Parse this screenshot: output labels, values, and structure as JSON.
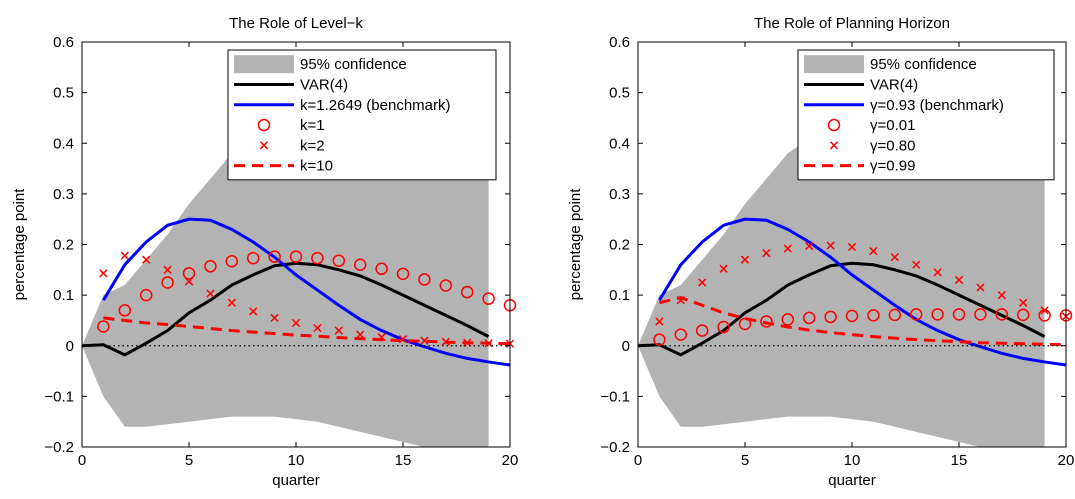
{
  "chart_data": [
    {
      "type": "line",
      "title": "The Role of Level−k",
      "xlabel": "quarter",
      "ylabel": "percentage point",
      "xlim": [
        0,
        20
      ],
      "ylim": [
        -0.2,
        0.6
      ],
      "xticks": [
        0,
        5,
        10,
        15,
        20
      ],
      "yticks": [
        -0.2,
        -0.1,
        0,
        0.1,
        0.2,
        0.3,
        0.4,
        0.5,
        0.6
      ],
      "ytick_labels": [
        "−0.2",
        "−0.1",
        "0",
        "0.1",
        "0.2",
        "0.3",
        "0.4",
        "0.5",
        "0.6"
      ],
      "xtick_labels": [
        "0",
        "5",
        "10",
        "15",
        "20"
      ],
      "legend_position": "top-right",
      "band": {
        "name": "95% confidence",
        "color": "#b3b3b3",
        "x": [
          0,
          1,
          2,
          3,
          4,
          5,
          6,
          7,
          8,
          9,
          10,
          11,
          12,
          13,
          14,
          15,
          16,
          17,
          18,
          19
        ],
        "lower": [
          0,
          -0.1,
          -0.16,
          -0.16,
          -0.155,
          -0.15,
          -0.145,
          -0.14,
          -0.14,
          -0.14,
          -0.145,
          -0.15,
          -0.16,
          -0.17,
          -0.18,
          -0.19,
          -0.2,
          -0.2,
          -0.2,
          -0.2
        ],
        "upper": [
          0,
          0.1,
          0.12,
          0.17,
          0.22,
          0.28,
          0.33,
          0.38,
          0.41,
          0.43,
          0.45,
          0.45,
          0.45,
          0.44,
          0.42,
          0.4,
          0.38,
          0.36,
          0.35,
          0.34
        ]
      },
      "series": [
        {
          "name": "VAR(4)",
          "style": "line",
          "color": "#000000",
          "x": [
            0,
            1,
            2,
            3,
            4,
            5,
            6,
            7,
            8,
            9,
            10,
            11,
            12,
            13,
            14,
            15,
            16,
            17,
            18,
            19
          ],
          "values": [
            0,
            0.002,
            -0.018,
            0.005,
            0.03,
            0.065,
            0.09,
            0.12,
            0.14,
            0.158,
            0.163,
            0.16,
            0.15,
            0.138,
            0.12,
            0.1,
            0.08,
            0.06,
            0.04,
            0.018
          ]
        },
        {
          "name": "k=1.2649 (benchmark)",
          "style": "line",
          "color": "#0000ff",
          "x": [
            1,
            2,
            3,
            4,
            5,
            6,
            7,
            8,
            9,
            10,
            11,
            12,
            13,
            14,
            15,
            16,
            17,
            18,
            19,
            20
          ],
          "values": [
            0.09,
            0.16,
            0.205,
            0.238,
            0.25,
            0.248,
            0.23,
            0.205,
            0.175,
            0.14,
            0.11,
            0.08,
            0.052,
            0.03,
            0.012,
            -0.002,
            -0.015,
            -0.025,
            -0.032,
            -0.038
          ]
        },
        {
          "name": "k=1",
          "style": "circle",
          "color": "#ff0000",
          "x": [
            1,
            2,
            3,
            4,
            5,
            6,
            7,
            8,
            9,
            10,
            11,
            12,
            13,
            14,
            15,
            16,
            17,
            18,
            19,
            20
          ],
          "values": [
            0.038,
            0.07,
            0.1,
            0.125,
            0.143,
            0.157,
            0.167,
            0.173,
            0.176,
            0.176,
            0.173,
            0.168,
            0.16,
            0.152,
            0.142,
            0.131,
            0.119,
            0.106,
            0.093,
            0.08
          ]
        },
        {
          "name": "k=2",
          "style": "cross",
          "color": "#ff0000",
          "x": [
            1,
            2,
            3,
            4,
            5,
            6,
            7,
            8,
            9,
            10,
            11,
            12,
            13,
            14,
            15,
            16,
            17,
            18,
            19,
            20
          ],
          "values": [
            0.143,
            0.178,
            0.17,
            0.15,
            0.127,
            0.103,
            0.085,
            0.068,
            0.055,
            0.045,
            0.035,
            0.03,
            0.022,
            0.017,
            0.013,
            0.01,
            0.008,
            0.006,
            0.005,
            0.004
          ]
        },
        {
          "name": "k=10",
          "style": "dashed",
          "color": "#ff0000",
          "x": [
            1,
            2,
            3,
            4,
            5,
            6,
            7,
            8,
            9,
            10,
            11,
            12,
            13,
            14,
            15,
            16,
            17,
            18,
            19,
            20
          ],
          "values": [
            0.055,
            0.05,
            0.045,
            0.042,
            0.038,
            0.034,
            0.03,
            0.027,
            0.024,
            0.021,
            0.019,
            0.016,
            0.014,
            0.012,
            0.01,
            0.009,
            0.007,
            0.006,
            0.005,
            0.004
          ]
        },
        {
          "name": "",
          "style": "dotted",
          "color": "#000000",
          "x": [
            0,
            20
          ],
          "values": [
            0,
            0
          ]
        }
      ]
    },
    {
      "type": "line",
      "title": "The Role of Planning Horizon",
      "xlabel": "quarter",
      "ylabel": "percentage point",
      "xlim": [
        0,
        20
      ],
      "ylim": [
        -0.2,
        0.6
      ],
      "xticks": [
        0,
        5,
        10,
        15,
        20
      ],
      "yticks": [
        -0.2,
        -0.1,
        0,
        0.1,
        0.2,
        0.3,
        0.4,
        0.5,
        0.6
      ],
      "ytick_labels": [
        "−0.2",
        "−0.1",
        "0",
        "0.1",
        "0.2",
        "0.3",
        "0.4",
        "0.5",
        "0.6"
      ],
      "xtick_labels": [
        "0",
        "5",
        "10",
        "15",
        "20"
      ],
      "legend_position": "top-right",
      "band": {
        "name": "95% confidence",
        "color": "#b3b3b3",
        "x": [
          0,
          1,
          2,
          3,
          4,
          5,
          6,
          7,
          8,
          9,
          10,
          11,
          12,
          13,
          14,
          15,
          16,
          17,
          18,
          19
        ],
        "lower": [
          0,
          -0.1,
          -0.16,
          -0.16,
          -0.155,
          -0.15,
          -0.145,
          -0.14,
          -0.14,
          -0.14,
          -0.145,
          -0.15,
          -0.16,
          -0.17,
          -0.18,
          -0.19,
          -0.2,
          -0.2,
          -0.2,
          -0.2
        ],
        "upper": [
          0,
          0.1,
          0.12,
          0.17,
          0.22,
          0.28,
          0.33,
          0.38,
          0.41,
          0.43,
          0.45,
          0.45,
          0.45,
          0.44,
          0.42,
          0.4,
          0.38,
          0.36,
          0.35,
          0.34
        ]
      },
      "series": [
        {
          "name": "VAR(4)",
          "style": "line",
          "color": "#000000",
          "x": [
            0,
            1,
            2,
            3,
            4,
            5,
            6,
            7,
            8,
            9,
            10,
            11,
            12,
            13,
            14,
            15,
            16,
            17,
            18,
            19
          ],
          "values": [
            0,
            0.002,
            -0.018,
            0.005,
            0.03,
            0.065,
            0.09,
            0.12,
            0.14,
            0.158,
            0.163,
            0.16,
            0.15,
            0.138,
            0.12,
            0.1,
            0.08,
            0.06,
            0.04,
            0.018
          ]
        },
        {
          "name": "γ=0.93 (benchmark)",
          "style": "line",
          "color": "#0000ff",
          "x": [
            1,
            2,
            3,
            4,
            5,
            6,
            7,
            8,
            9,
            10,
            11,
            12,
            13,
            14,
            15,
            16,
            17,
            18,
            19,
            20
          ],
          "values": [
            0.09,
            0.16,
            0.205,
            0.238,
            0.25,
            0.248,
            0.23,
            0.205,
            0.175,
            0.14,
            0.11,
            0.08,
            0.052,
            0.03,
            0.012,
            -0.002,
            -0.015,
            -0.025,
            -0.032,
            -0.038
          ]
        },
        {
          "name": "γ=0.01",
          "style": "circle",
          "color": "#ff0000",
          "x": [
            1,
            2,
            3,
            4,
            5,
            6,
            7,
            8,
            9,
            10,
            11,
            12,
            13,
            14,
            15,
            16,
            17,
            18,
            19,
            20
          ],
          "values": [
            0.012,
            0.022,
            0.03,
            0.037,
            0.043,
            0.048,
            0.052,
            0.055,
            0.057,
            0.059,
            0.06,
            0.061,
            0.062,
            0.062,
            0.062,
            0.062,
            0.062,
            0.061,
            0.06,
            0.06
          ]
        },
        {
          "name": "γ=0.80",
          "style": "cross",
          "color": "#ff0000",
          "x": [
            1,
            2,
            3,
            4,
            5,
            6,
            7,
            8,
            9,
            10,
            11,
            12,
            13,
            14,
            15,
            16,
            17,
            18,
            19,
            20
          ],
          "values": [
            0.048,
            0.09,
            0.125,
            0.152,
            0.17,
            0.183,
            0.192,
            0.197,
            0.198,
            0.195,
            0.187,
            0.175,
            0.16,
            0.145,
            0.13,
            0.115,
            0.1,
            0.085,
            0.07,
            0.058
          ]
        },
        {
          "name": "γ=0.99",
          "style": "dashed",
          "color": "#ff0000",
          "x": [
            1,
            2,
            3,
            4,
            5,
            6,
            7,
            8,
            9,
            10,
            11,
            12,
            13,
            14,
            15,
            16,
            17,
            18,
            19,
            20
          ],
          "values": [
            0.085,
            0.095,
            0.08,
            0.065,
            0.054,
            0.045,
            0.037,
            0.031,
            0.026,
            0.022,
            0.018,
            0.015,
            0.012,
            0.01,
            0.008,
            0.006,
            0.005,
            0.004,
            0.003,
            0.002
          ]
        },
        {
          "name": "",
          "style": "dotted",
          "color": "#000000",
          "x": [
            0,
            20
          ],
          "values": [
            0,
            0
          ]
        }
      ]
    }
  ]
}
